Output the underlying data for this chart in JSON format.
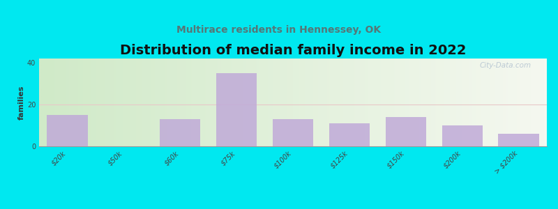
{
  "title": "Distribution of median family income in 2022",
  "subtitle": "Multirace residents in Hennessey, OK",
  "ylabel": "families",
  "categories": [
    "$20k",
    "$50k",
    "$60k",
    "$75k",
    "$100k",
    "$125k",
    "$150k",
    "$200k",
    "> $200k"
  ],
  "values": [
    15,
    0,
    13,
    35,
    13,
    11,
    14,
    10,
    6
  ],
  "bar_color": "#c0aad8",
  "background_outer": "#00e8f0",
  "background_inner_left": "#d0eac8",
  "background_inner_right": "#f5f8f0",
  "grid_color": "#e8c8c8",
  "ylim": [
    0,
    42
  ],
  "yticks": [
    0,
    20,
    40
  ],
  "watermark": "City-Data.com",
  "title_fontsize": 14,
  "subtitle_fontsize": 10,
  "ylabel_fontsize": 8,
  "tick_fontsize": 7,
  "subtitle_color": "#557777",
  "title_color": "#111111"
}
